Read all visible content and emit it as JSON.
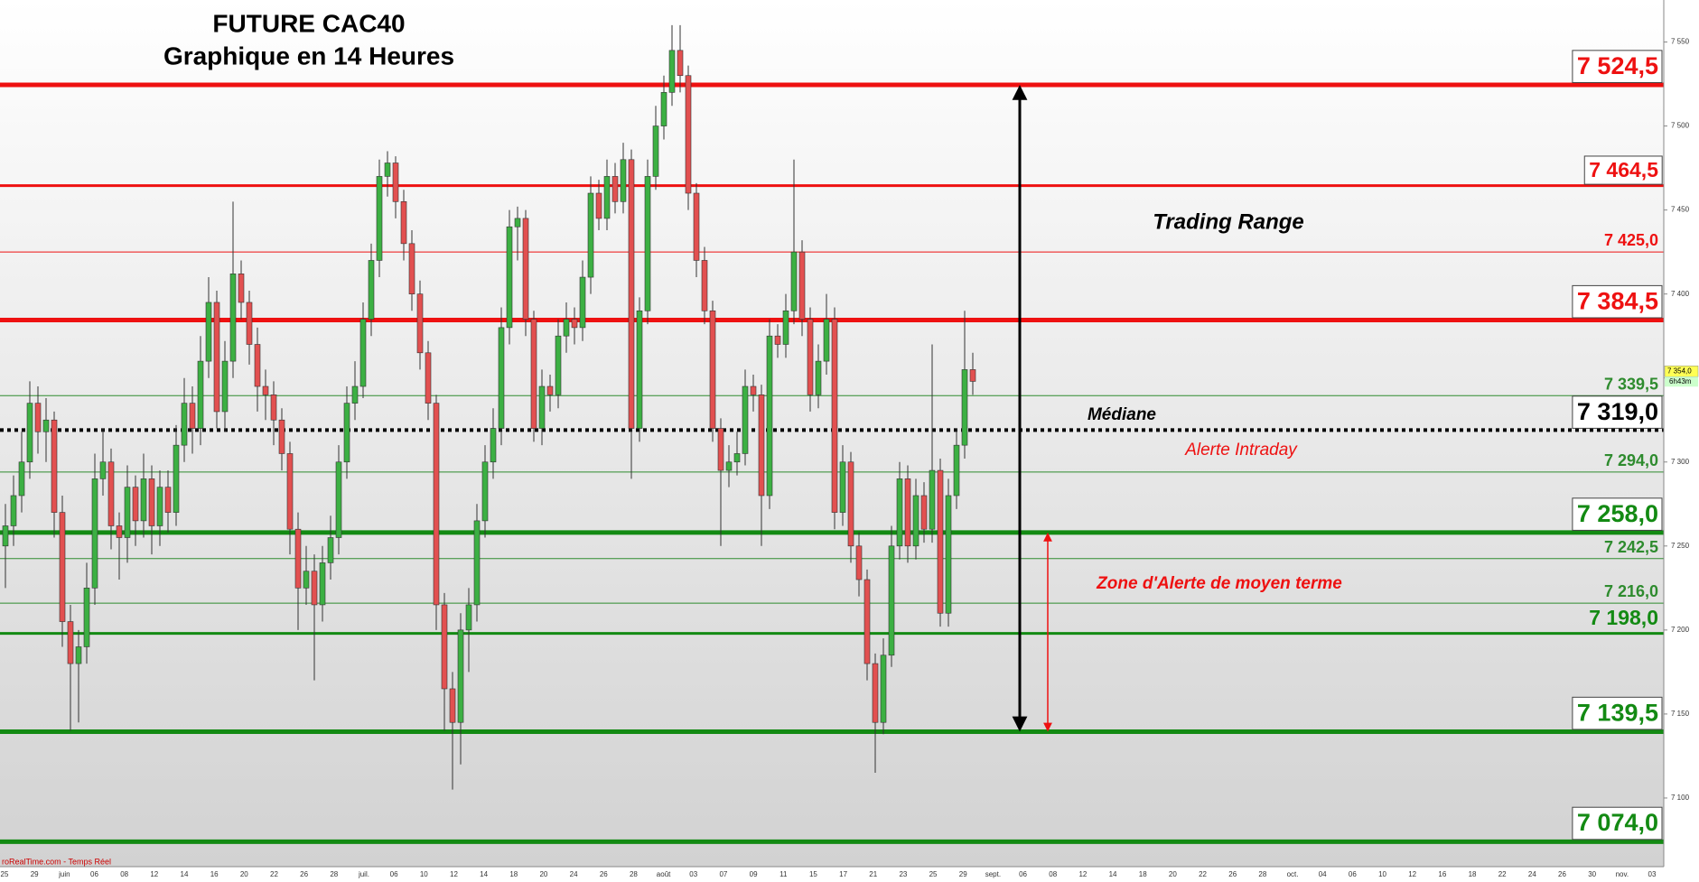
{
  "chart_data": {
    "type": "candlestick",
    "title": "FUTURE CAC40",
    "subtitle": "Graphique en 14 Heures",
    "up_color": "#3cb043",
    "down_color": "#e25050",
    "ylim": [
      7050,
      7575
    ],
    "yticks": [
      {
        "value": 7100,
        "label": "7 100"
      },
      {
        "value": 7150,
        "label": "7 150"
      },
      {
        "value": 7200,
        "label": "7 200"
      },
      {
        "value": 7250,
        "label": "7 250"
      },
      {
        "value": 7300,
        "label": "7 300"
      },
      {
        "value": 7350,
        "label": "7 350"
      },
      {
        "value": 7400,
        "label": "7 400"
      },
      {
        "value": 7450,
        "label": "7 450"
      },
      {
        "value": 7500,
        "label": "7 500"
      },
      {
        "value": 7550,
        "label": "7 550"
      }
    ],
    "x_axis_labels": [
      "25",
      "29",
      "juin",
      "06",
      "08",
      "12",
      "14",
      "16",
      "20",
      "22",
      "26",
      "28",
      "juil.",
      "06",
      "10",
      "12",
      "14",
      "18",
      "20",
      "24",
      "26",
      "28",
      "août",
      "03",
      "07",
      "09",
      "11",
      "15",
      "17",
      "21",
      "23",
      "25",
      "29",
      "sept.",
      "06",
      "08",
      "12",
      "14",
      "18",
      "20",
      "22",
      "26",
      "28",
      "oct.",
      "04",
      "06",
      "10",
      "12",
      "16",
      "18",
      "22",
      "24",
      "26",
      "30",
      "nov.",
      "03"
    ],
    "candles": [
      [
        7250,
        7275,
        7225,
        7262
      ],
      [
        7262,
        7292,
        7250,
        7280
      ],
      [
        7280,
        7318,
        7270,
        7300
      ],
      [
        7300,
        7348,
        7290,
        7335
      ],
      [
        7335,
        7345,
        7305,
        7318
      ],
      [
        7318,
        7338,
        7300,
        7325
      ],
      [
        7325,
        7330,
        7255,
        7270
      ],
      [
        7270,
        7280,
        7190,
        7205
      ],
      [
        7205,
        7215,
        7140,
        7180
      ],
      [
        7180,
        7200,
        7145,
        7190
      ],
      [
        7190,
        7240,
        7180,
        7225
      ],
      [
        7225,
        7305,
        7215,
        7290
      ],
      [
        7290,
        7320,
        7280,
        7300
      ],
      [
        7300,
        7308,
        7248,
        7262
      ],
      [
        7262,
        7270,
        7230,
        7255
      ],
      [
        7255,
        7298,
        7240,
        7285
      ],
      [
        7285,
        7292,
        7250,
        7265
      ],
      [
        7265,
        7305,
        7255,
        7290
      ],
      [
        7290,
        7298,
        7245,
        7262
      ],
      [
        7262,
        7295,
        7250,
        7285
      ],
      [
        7285,
        7295,
        7258,
        7270
      ],
      [
        7270,
        7322,
        7262,
        7310
      ],
      [
        7310,
        7350,
        7300,
        7335
      ],
      [
        7335,
        7345,
        7305,
        7320
      ],
      [
        7320,
        7375,
        7310,
        7360
      ],
      [
        7360,
        7410,
        7350,
        7395
      ],
      [
        7395,
        7402,
        7320,
        7330
      ],
      [
        7330,
        7372,
        7318,
        7360
      ],
      [
        7360,
        7455,
        7350,
        7412
      ],
      [
        7412,
        7420,
        7385,
        7395
      ],
      [
        7395,
        7402,
        7358,
        7370
      ],
      [
        7370,
        7380,
        7330,
        7345
      ],
      [
        7345,
        7355,
        7325,
        7340
      ],
      [
        7340,
        7348,
        7310,
        7325
      ],
      [
        7325,
        7332,
        7295,
        7305
      ],
      [
        7305,
        7312,
        7245,
        7260
      ],
      [
        7260,
        7270,
        7200,
        7225
      ],
      [
        7225,
        7250,
        7215,
        7235
      ],
      [
        7235,
        7245,
        7170,
        7215
      ],
      [
        7215,
        7250,
        7205,
        7240
      ],
      [
        7240,
        7268,
        7230,
        7255
      ],
      [
        7255,
        7310,
        7245,
        7300
      ],
      [
        7300,
        7345,
        7290,
        7335
      ],
      [
        7335,
        7360,
        7325,
        7345
      ],
      [
        7345,
        7395,
        7338,
        7385
      ],
      [
        7385,
        7430,
        7375,
        7420
      ],
      [
        7420,
        7480,
        7410,
        7470
      ],
      [
        7470,
        7485,
        7458,
        7478
      ],
      [
        7478,
        7482,
        7445,
        7455
      ],
      [
        7455,
        7462,
        7420,
        7430
      ],
      [
        7430,
        7438,
        7390,
        7400
      ],
      [
        7400,
        7408,
        7355,
        7365
      ],
      [
        7365,
        7372,
        7325,
        7335
      ],
      [
        7335,
        7340,
        7200,
        7215
      ],
      [
        7215,
        7222,
        7140,
        7165
      ],
      [
        7165,
        7175,
        7105,
        7145
      ],
      [
        7145,
        7210,
        7120,
        7200
      ],
      [
        7200,
        7225,
        7175,
        7215
      ],
      [
        7215,
        7275,
        7205,
        7265
      ],
      [
        7265,
        7310,
        7255,
        7300
      ],
      [
        7300,
        7332,
        7290,
        7320
      ],
      [
        7320,
        7392,
        7310,
        7380
      ],
      [
        7380,
        7450,
        7370,
        7440
      ],
      [
        7440,
        7452,
        7420,
        7445
      ],
      [
        7445,
        7450,
        7375,
        7385
      ],
      [
        7385,
        7390,
        7312,
        7320
      ],
      [
        7320,
        7355,
        7310,
        7345
      ],
      [
        7345,
        7352,
        7330,
        7340
      ],
      [
        7340,
        7385,
        7332,
        7375
      ],
      [
        7375,
        7395,
        7365,
        7385
      ],
      [
        7385,
        7392,
        7370,
        7380
      ],
      [
        7380,
        7420,
        7372,
        7410
      ],
      [
        7410,
        7470,
        7400,
        7460
      ],
      [
        7460,
        7468,
        7438,
        7445
      ],
      [
        7445,
        7480,
        7438,
        7470
      ],
      [
        7470,
        7478,
        7448,
        7455
      ],
      [
        7455,
        7490,
        7448,
        7480
      ],
      [
        7480,
        7486,
        7290,
        7320
      ],
      [
        7320,
        7398,
        7312,
        7390
      ],
      [
        7390,
        7480,
        7382,
        7470
      ],
      [
        7470,
        7512,
        7462,
        7500
      ],
      [
        7500,
        7530,
        7492,
        7520
      ],
      [
        7520,
        7560,
        7512,
        7545
      ],
      [
        7545,
        7560,
        7520,
        7530
      ],
      [
        7530,
        7536,
        7450,
        7460
      ],
      [
        7460,
        7466,
        7410,
        7420
      ],
      [
        7420,
        7428,
        7382,
        7390
      ],
      [
        7390,
        7396,
        7312,
        7320
      ],
      [
        7320,
        7326,
        7250,
        7295
      ],
      [
        7295,
        7310,
        7285,
        7300
      ],
      [
        7300,
        7318,
        7292,
        7305
      ],
      [
        7305,
        7355,
        7298,
        7345
      ],
      [
        7345,
        7352,
        7330,
        7340
      ],
      [
        7340,
        7346,
        7250,
        7280
      ],
      [
        7280,
        7385,
        7272,
        7375
      ],
      [
        7375,
        7382,
        7362,
        7370
      ],
      [
        7370,
        7400,
        7362,
        7390
      ],
      [
        7390,
        7480,
        7382,
        7425
      ],
      [
        7425,
        7432,
        7375,
        7385
      ],
      [
        7385,
        7392,
        7330,
        7340
      ],
      [
        7340,
        7370,
        7332,
        7360
      ],
      [
        7360,
        7400,
        7352,
        7385
      ],
      [
        7385,
        7392,
        7260,
        7270
      ],
      [
        7270,
        7310,
        7262,
        7300
      ],
      [
        7300,
        7306,
        7240,
        7250
      ],
      [
        7250,
        7258,
        7220,
        7230
      ],
      [
        7230,
        7236,
        7170,
        7180
      ],
      [
        7180,
        7186,
        7115,
        7145
      ],
      [
        7145,
        7195,
        7138,
        7185
      ],
      [
        7185,
        7262,
        7178,
        7250
      ],
      [
        7250,
        7300,
        7242,
        7290
      ],
      [
        7290,
        7298,
        7240,
        7250
      ],
      [
        7250,
        7290,
        7242,
        7280
      ],
      [
        7280,
        7288,
        7252,
        7260
      ],
      [
        7260,
        7370,
        7252,
        7295
      ],
      [
        7295,
        7302,
        7202,
        7210
      ],
      [
        7210,
        7290,
        7202,
        7280
      ],
      [
        7280,
        7320,
        7272,
        7310
      ],
      [
        7310,
        7390,
        7302,
        7355
      ],
      [
        7355,
        7365,
        7340,
        7348
      ]
    ],
    "levels": [
      {
        "value": 7524.5,
        "label": "7 524,5",
        "color": "#ee1111",
        "width": 5,
        "boxed": true,
        "size": "large"
      },
      {
        "value": 7464.5,
        "label": "7 464,5",
        "color": "#ee1111",
        "width": 3,
        "boxed": true,
        "size": "medium"
      },
      {
        "value": 7425.0,
        "label": "7 425,0",
        "color": "#ee1111",
        "width": 1,
        "boxed": false,
        "size": "small"
      },
      {
        "value": 7384.5,
        "label": "7 384,5",
        "color": "#ee1111",
        "width": 5,
        "boxed": true,
        "size": "large"
      },
      {
        "value": 7339.5,
        "label": "7 339,5",
        "color": "#2e8b2e",
        "width": 1,
        "boxed": false,
        "size": "small"
      },
      {
        "value": 7319.0,
        "label": "7 319,0",
        "color": "#000000",
        "width": 4,
        "boxed": true,
        "size": "large",
        "dotted": true
      },
      {
        "value": 7294.0,
        "label": "7 294,0",
        "color": "#2e8b2e",
        "width": 1,
        "boxed": false,
        "size": "small"
      },
      {
        "value": 7258.0,
        "label": "7 258,0",
        "color": "#138a13",
        "width": 5,
        "boxed": true,
        "size": "large"
      },
      {
        "value": 7242.5,
        "label": "7 242,5",
        "color": "#2e8b2e",
        "width": 1,
        "boxed": false,
        "size": "small"
      },
      {
        "value": 7216.0,
        "label": "7 216,0",
        "color": "#2e8b2e",
        "width": 1,
        "boxed": false,
        "size": "small"
      },
      {
        "value": 7198.0,
        "label": "7 198,0",
        "color": "#138a13",
        "width": 3,
        "boxed": false,
        "size": "medium"
      },
      {
        "value": 7139.5,
        "label": "7 139,5",
        "color": "#138a13",
        "width": 5,
        "boxed": true,
        "size": "large"
      },
      {
        "value": 7074.0,
        "label": "7 074,0",
        "color": "#138a13",
        "width": 5,
        "boxed": true,
        "size": "large"
      }
    ],
    "arrows": [
      {
        "from": 7524.5,
        "to": 7139.5,
        "color": "#000000"
      },
      {
        "from": 7258.0,
        "to": 7139.5,
        "color": "#ee1111"
      }
    ],
    "annotations": {
      "range": "Trading Range",
      "median": "Médiane",
      "intraday": "Alerte Intraday",
      "zone": "Zone d'Alerte de moyen terme"
    },
    "last_price": {
      "value": 7354,
      "label": "7 354,0"
    },
    "timer": "6h43m",
    "source": "roRealTime.com - Temps Réel"
  }
}
